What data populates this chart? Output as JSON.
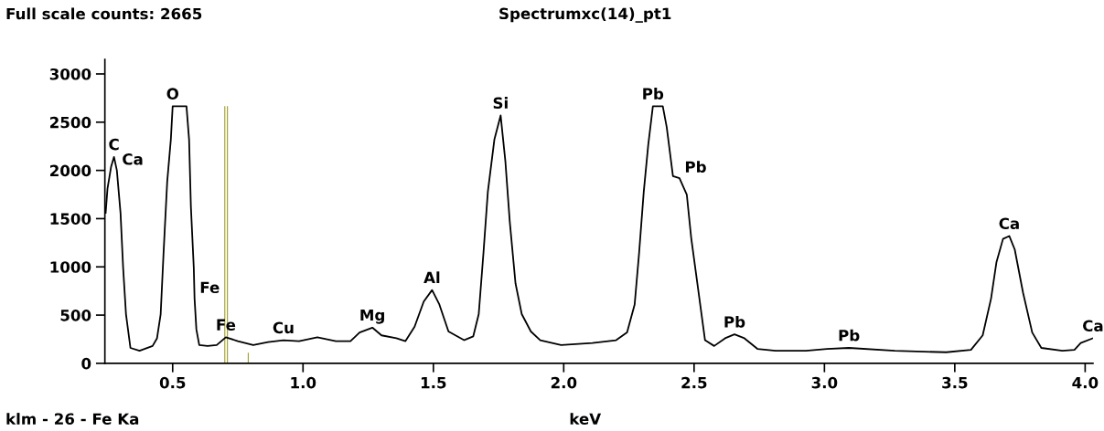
{
  "chart_data": {
    "type": "line",
    "title": "Spectrumxc(14)_pt1",
    "xlabel": "keV",
    "annotations": [
      "Full scale counts: 2665",
      "klm - 26 - Fe Ka",
      {
        "text": "C",
        "x": 0.275,
        "y": 2140
      },
      {
        "text": "Ca",
        "x": 0.286,
        "y": 2000
      },
      {
        "text": "O",
        "x": 0.5,
        "y": 2665
      },
      {
        "text": "Fe",
        "x": 0.584,
        "y": 670
      },
      {
        "text": "Fe",
        "x": 0.704,
        "y": 270
      },
      {
        "text": "Cu",
        "x": 0.925,
        "y": 240
      },
      {
        "text": "Mg",
        "x": 1.266,
        "y": 370
      },
      {
        "text": "Al",
        "x": 1.495,
        "y": 760
      },
      {
        "text": "Si",
        "x": 1.758,
        "y": 2570
      },
      {
        "text": "Pb",
        "x": 2.342,
        "y": 2665
      },
      {
        "text": "Pb",
        "x": 2.444,
        "y": 1920
      },
      {
        "text": "Pb",
        "x": 2.655,
        "y": 300
      },
      {
        "text": "Pb",
        "x": 3.094,
        "y": 160
      },
      {
        "text": "Ca",
        "x": 3.709,
        "y": 1320
      },
      {
        "text": "Ca",
        "x": 4.03,
        "y": 260
      }
    ],
    "series": [
      {
        "type": "bar",
        "color": "#a0a030",
        "x": [
          0.7,
          0.71,
          0.79
        ],
        "values": [
          2665,
          2665,
          110
        ]
      },
      {
        "color": "#000000",
        "x": [
          0.243,
          0.25,
          0.264,
          0.275,
          0.286,
          0.3,
          0.31,
          0.321,
          0.338,
          0.373,
          0.423,
          0.44,
          0.454,
          0.465,
          0.479,
          0.493,
          0.5,
          0.553,
          0.563,
          0.57,
          0.581,
          0.584,
          0.591,
          0.602,
          0.634,
          0.669,
          0.704,
          0.75,
          0.809,
          0.866,
          0.925,
          0.985,
          1.055,
          1.126,
          1.182,
          1.217,
          1.266,
          1.301,
          1.358,
          1.393,
          1.428,
          1.463,
          1.495,
          1.523,
          1.558,
          1.618,
          1.653,
          1.674,
          1.692,
          1.709,
          1.734,
          1.758,
          1.776,
          1.793,
          1.815,
          1.839,
          1.874,
          1.91,
          1.99,
          2.11,
          2.201,
          2.243,
          2.272,
          2.289,
          2.307,
          2.324,
          2.342,
          2.38,
          2.395,
          2.419,
          2.444,
          2.472,
          2.489,
          2.514,
          2.542,
          2.577,
          2.619,
          2.655,
          2.693,
          2.743,
          2.813,
          2.929,
          3.01,
          3.094,
          3.27,
          3.467,
          3.562,
          3.607,
          3.639,
          3.66,
          3.685,
          3.709,
          3.73,
          3.762,
          3.797,
          3.832,
          3.913,
          3.959,
          3.983,
          4.03
        ],
        "values": [
          1560,
          1810,
          2040,
          2140,
          2000,
          1560,
          990,
          510,
          160,
          130,
          180,
          260,
          510,
          1140,
          1880,
          2320,
          2665,
          2665,
          2320,
          1620,
          990,
          670,
          350,
          190,
          180,
          190,
          270,
          230,
          190,
          220,
          240,
          230,
          270,
          230,
          230,
          320,
          370,
          290,
          260,
          230,
          380,
          640,
          760,
          610,
          330,
          240,
          280,
          510,
          1140,
          1780,
          2320,
          2570,
          2100,
          1470,
          830,
          510,
          330,
          240,
          190,
          210,
          240,
          320,
          610,
          1140,
          1780,
          2260,
          2665,
          2665,
          2450,
          1940,
          1920,
          1750,
          1300,
          800,
          240,
          180,
          260,
          300,
          260,
          150,
          130,
          130,
          150,
          160,
          130,
          115,
          140,
          290,
          670,
          1050,
          1290,
          1320,
          1180,
          730,
          320,
          160,
          130,
          140,
          210,
          260
        ]
      }
    ],
    "xlim": [
      0.24,
      4.03
    ],
    "ylim": [
      0,
      3150
    ],
    "xticks": [
      {
        "value": 0.5,
        "label": "0.5"
      },
      {
        "value": 1.0,
        "label": "1.0"
      },
      {
        "value": 1.5,
        "label": "1.5"
      },
      {
        "value": 2.0,
        "label": "2.0"
      },
      {
        "value": 2.5,
        "label": "2.5"
      },
      {
        "value": 3.0,
        "label": "3.0"
      },
      {
        "value": 3.5,
        "label": "3.5"
      },
      {
        "value": 4.0,
        "label": "4.0"
      }
    ],
    "yticks": [
      0,
      500,
      1000,
      1500,
      2000,
      2500,
      3000
    ]
  }
}
